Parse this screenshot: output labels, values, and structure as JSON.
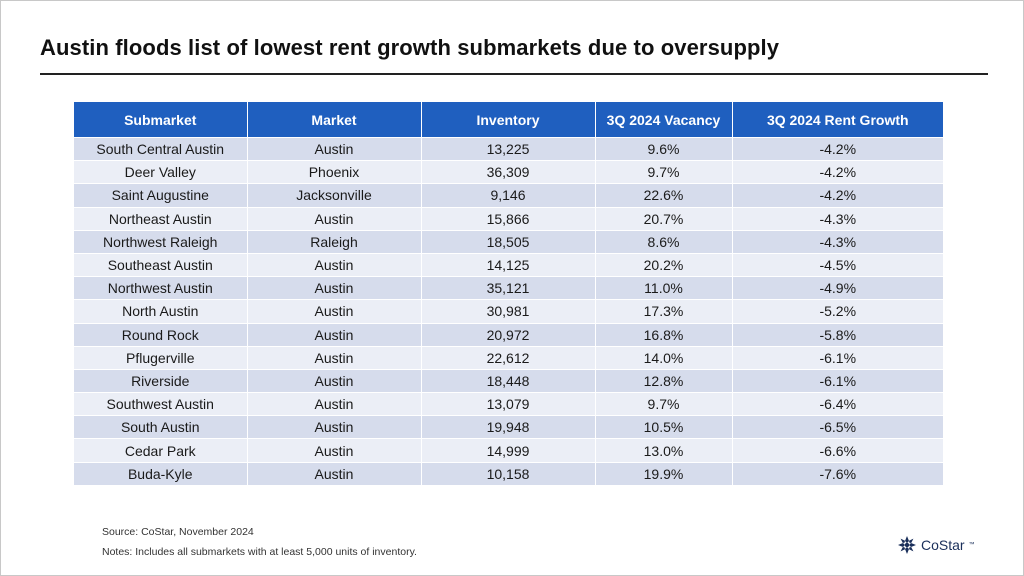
{
  "title": "Austin floods list of lowest rent growth submarkets due to oversupply",
  "table": {
    "headers": [
      "Submarket",
      "Market",
      "Inventory",
      "3Q 2024 Vacancy",
      "3Q 2024 Rent Growth"
    ],
    "rows": [
      [
        "South Central Austin",
        "Austin",
        "13,225",
        "9.6%",
        "-4.2%"
      ],
      [
        "Deer Valley",
        "Phoenix",
        "36,309",
        "9.7%",
        "-4.2%"
      ],
      [
        "Saint Augustine",
        "Jacksonville",
        "9,146",
        "22.6%",
        "-4.2%"
      ],
      [
        "Northeast Austin",
        "Austin",
        "15,866",
        "20.7%",
        "-4.3%"
      ],
      [
        "Northwest Raleigh",
        "Raleigh",
        "18,505",
        "8.6%",
        "-4.3%"
      ],
      [
        "Southeast Austin",
        "Austin",
        "14,125",
        "20.2%",
        "-4.5%"
      ],
      [
        "Northwest Austin",
        "Austin",
        "35,121",
        "11.0%",
        "-4.9%"
      ],
      [
        "North Austin",
        "Austin",
        "30,981",
        "17.3%",
        "-5.2%"
      ],
      [
        "Round Rock",
        "Austin",
        "20,972",
        "16.8%",
        "-5.8%"
      ],
      [
        "Pflugerville",
        "Austin",
        "22,612",
        "14.0%",
        "-6.1%"
      ],
      [
        "Riverside",
        "Austin",
        "18,448",
        "12.8%",
        "-6.1%"
      ],
      [
        "Southwest Austin",
        "Austin",
        "13,079",
        "9.7%",
        "-6.4%"
      ],
      [
        "South Austin",
        "Austin",
        "19,948",
        "10.5%",
        "-6.5%"
      ],
      [
        "Cedar Park",
        "Austin",
        "14,999",
        "13.0%",
        "-6.6%"
      ],
      [
        "Buda-Kyle",
        "Austin",
        "10,158",
        "19.9%",
        "-7.6%"
      ]
    ]
  },
  "footer": {
    "source": "Source: CoStar, November 2024",
    "notes": "Notes: Includes all submarkets with at least 5,000 units of inventory."
  },
  "logo": {
    "text": "CoStar",
    "tm": "™",
    "icon": "costar-star-icon"
  },
  "colors": {
    "header_bg": "#1f5fbf",
    "row_odd": "#d6dcec",
    "row_even": "#ebeef6",
    "logo": "#1a2f5a"
  }
}
